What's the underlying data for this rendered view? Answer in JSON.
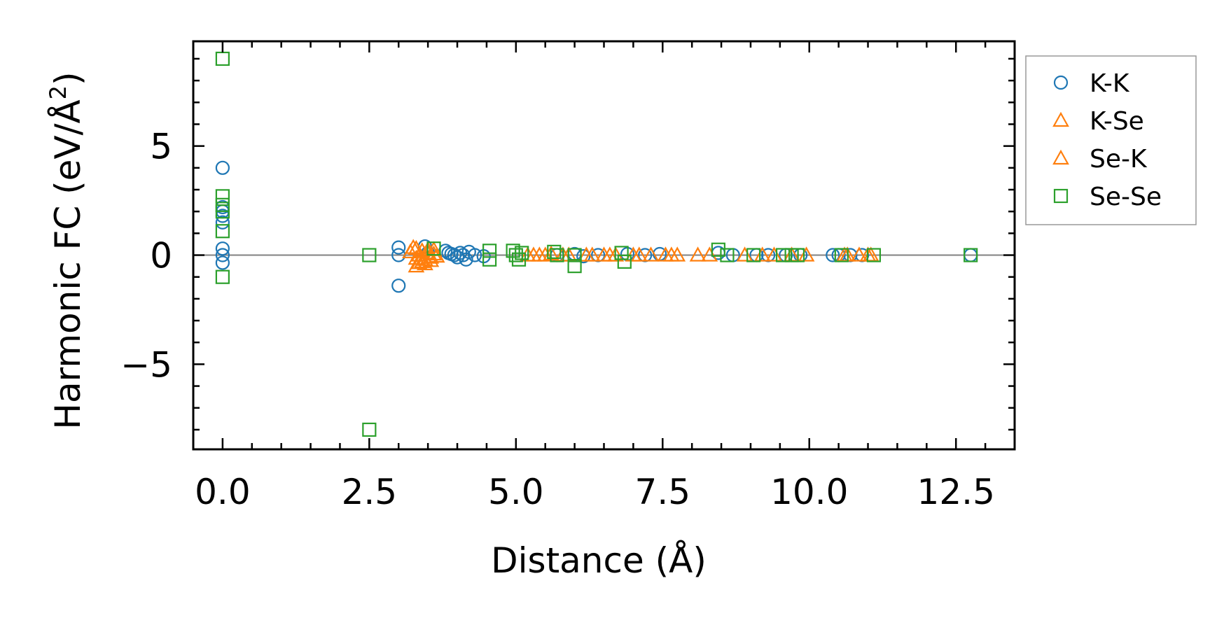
{
  "chart_data": {
    "type": "scatter",
    "title": "",
    "xlabel": "Distance (Å)",
    "ylabel": "Harmonic FC (eV/Å",
    "ylabel_sup": "2",
    "ylabel_close": ")",
    "xlim": [
      -0.5,
      13.5
    ],
    "ylim": [
      -8.9,
      9.8
    ],
    "xticks": [
      0.0,
      2.5,
      5.0,
      7.5,
      10.0,
      12.5
    ],
    "xtick_labels": [
      "0.0",
      "2.5",
      "5.0",
      "7.5",
      "10.0",
      "12.5"
    ],
    "yticks": [
      -5,
      0,
      5
    ],
    "ytick_labels": [
      "−5",
      "0",
      "5"
    ],
    "grid": false,
    "zero_line": true,
    "legend_position": "outside-right-top",
    "colors": {
      "K-K": "#1f77b4",
      "K-Se": "#ff7f0e",
      "Se-K": "#ff7f0e",
      "Se-Se": "#2ca02c",
      "zero_line": "#808080"
    },
    "series": [
      {
        "name": "K-K",
        "marker": "circle",
        "points": [
          [
            0.0,
            4.0
          ],
          [
            0.0,
            2.2
          ],
          [
            0.0,
            2.0
          ],
          [
            0.0,
            1.8
          ],
          [
            0.0,
            1.5
          ],
          [
            0.0,
            0.3
          ],
          [
            0.0,
            0.0
          ],
          [
            0.0,
            -0.35
          ],
          [
            3.0,
            0.35
          ],
          [
            3.0,
            0.0
          ],
          [
            3.0,
            -1.4
          ],
          [
            3.45,
            0.4
          ],
          [
            3.5,
            0.1
          ],
          [
            3.8,
            0.2
          ],
          [
            3.85,
            0.1
          ],
          [
            3.9,
            0.05
          ],
          [
            3.95,
            0.0
          ],
          [
            4.0,
            -0.1
          ],
          [
            4.05,
            0.1
          ],
          [
            4.1,
            0.0
          ],
          [
            4.15,
            -0.2
          ],
          [
            4.2,
            0.15
          ],
          [
            4.3,
            0.0
          ],
          [
            4.45,
            -0.05
          ],
          [
            5.7,
            0.0
          ],
          [
            6.0,
            0.05
          ],
          [
            6.15,
            -0.05
          ],
          [
            6.4,
            0.0
          ],
          [
            6.9,
            0.05
          ],
          [
            7.2,
            0.0
          ],
          [
            7.45,
            0.05
          ],
          [
            8.45,
            0.1
          ],
          [
            8.7,
            0.0
          ],
          [
            9.1,
            0.0
          ],
          [
            9.3,
            0.0
          ],
          [
            9.6,
            0.0
          ],
          [
            9.85,
            0.0
          ],
          [
            10.4,
            0.0
          ],
          [
            10.5,
            0.0
          ],
          [
            10.7,
            0.0
          ],
          [
            10.9,
            0.0
          ],
          [
            12.75,
            0.0
          ]
        ]
      },
      {
        "name": "K-Se",
        "marker": "triangle",
        "points": [
          [
            3.25,
            0.35
          ],
          [
            3.3,
            -0.15
          ],
          [
            3.3,
            -0.5
          ],
          [
            3.35,
            0.0
          ],
          [
            3.35,
            -0.35
          ],
          [
            3.4,
            0.2
          ],
          [
            3.45,
            -0.2
          ],
          [
            3.45,
            -0.4
          ],
          [
            3.5,
            0.1
          ],
          [
            3.55,
            -0.1
          ],
          [
            3.6,
            0.25
          ],
          [
            3.65,
            -0.05
          ],
          [
            5.2,
            0.0
          ],
          [
            5.4,
            0.0
          ],
          [
            5.6,
            0.05
          ],
          [
            5.8,
            0.0
          ],
          [
            6.2,
            0.0
          ],
          [
            6.5,
            0.0
          ],
          [
            6.7,
            0.0
          ],
          [
            7.0,
            0.0
          ],
          [
            7.3,
            0.0
          ],
          [
            7.55,
            0.0
          ],
          [
            7.75,
            0.0
          ],
          [
            8.1,
            0.0
          ],
          [
            8.9,
            0.0
          ],
          [
            9.4,
            0.0
          ],
          [
            9.95,
            0.0
          ],
          [
            10.65,
            0.0
          ],
          [
            10.85,
            0.0
          ],
          [
            11.0,
            0.0
          ]
        ]
      },
      {
        "name": "Se-K",
        "marker": "triangle",
        "points": [
          [
            3.2,
            0.15
          ],
          [
            3.3,
            0.3
          ],
          [
            3.4,
            -0.3
          ],
          [
            3.5,
            0.25
          ],
          [
            3.55,
            -0.25
          ],
          [
            3.6,
            0.05
          ],
          [
            5.3,
            0.0
          ],
          [
            5.5,
            0.0
          ],
          [
            5.9,
            0.0
          ],
          [
            6.3,
            0.0
          ],
          [
            6.6,
            0.0
          ],
          [
            7.1,
            0.0
          ],
          [
            7.65,
            0.0
          ],
          [
            8.3,
            0.0
          ],
          [
            9.2,
            0.0
          ],
          [
            9.7,
            0.0
          ],
          [
            10.6,
            0.0
          ],
          [
            11.05,
            0.0
          ]
        ]
      },
      {
        "name": "Se-Se",
        "marker": "square",
        "points": [
          [
            0.0,
            9.0
          ],
          [
            0.0,
            2.7
          ],
          [
            0.0,
            2.3
          ],
          [
            0.0,
            2.0
          ],
          [
            0.0,
            1.1
          ],
          [
            0.0,
            -1.0
          ],
          [
            2.5,
            0.0
          ],
          [
            2.5,
            -8.0
          ],
          [
            3.6,
            0.3
          ],
          [
            4.55,
            0.2
          ],
          [
            4.55,
            -0.2
          ],
          [
            4.95,
            0.2
          ],
          [
            5.0,
            0.0
          ],
          [
            5.05,
            -0.2
          ],
          [
            5.1,
            0.1
          ],
          [
            5.65,
            0.15
          ],
          [
            5.7,
            0.0
          ],
          [
            6.0,
            0.0
          ],
          [
            6.0,
            -0.5
          ],
          [
            6.8,
            0.1
          ],
          [
            6.85,
            -0.3
          ],
          [
            8.45,
            0.25
          ],
          [
            8.6,
            0.0
          ],
          [
            9.05,
            0.0
          ],
          [
            9.55,
            0.0
          ],
          [
            9.7,
            0.0
          ],
          [
            9.8,
            0.0
          ],
          [
            10.55,
            0.0
          ],
          [
            11.1,
            0.0
          ],
          [
            12.75,
            0.0
          ]
        ]
      }
    ]
  }
}
